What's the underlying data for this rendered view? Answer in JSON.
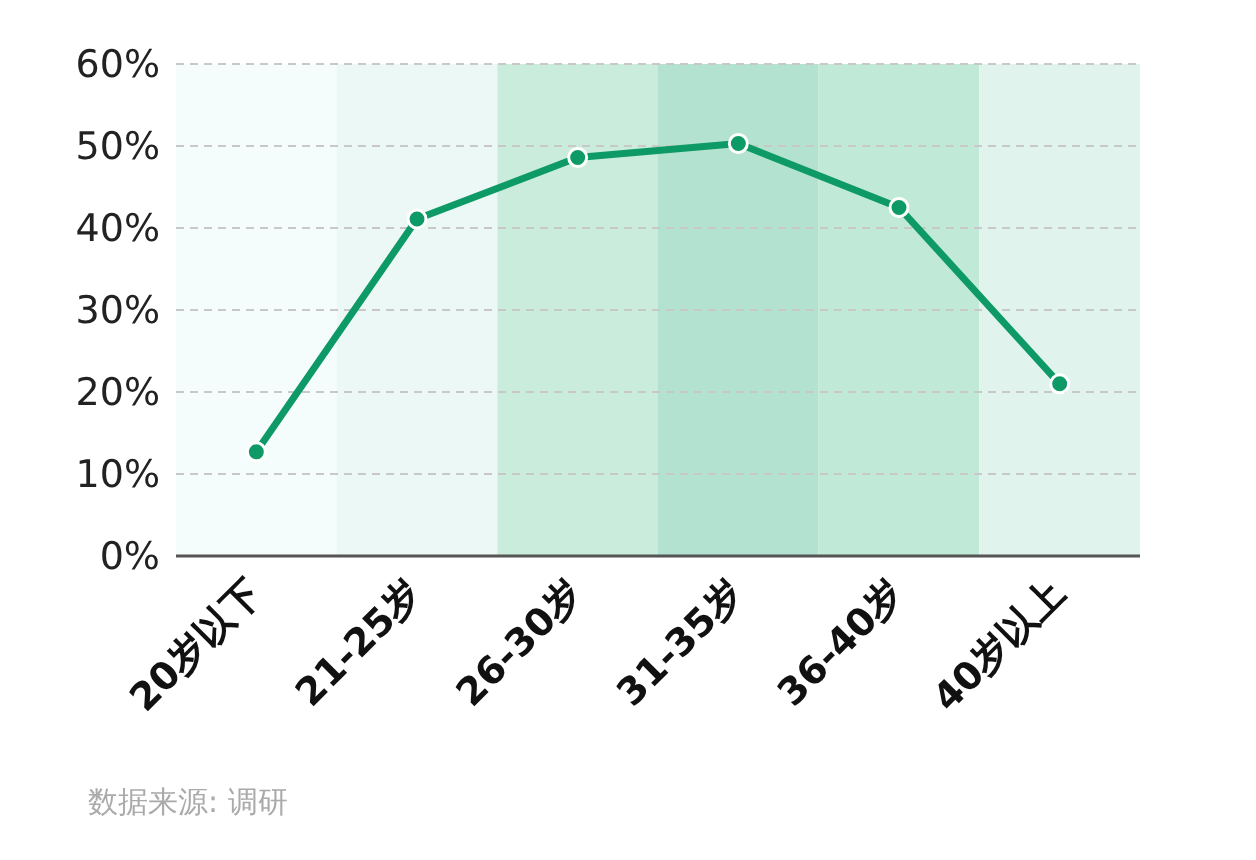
{
  "chart_data": {
    "type": "line",
    "categories": [
      "20岁以下",
      "21-25岁",
      "26-30岁",
      "31-35岁",
      "36-40岁",
      "40岁以上"
    ],
    "series": [
      {
        "color": "#0e9a67",
        "values": [
          12.7,
          41.1,
          48.6,
          50.3,
          42.5,
          21.0
        ]
      }
    ],
    "ylim": [
      0,
      60
    ],
    "yticks": [
      {
        "value": 0,
        "label": "0%"
      },
      {
        "value": 10,
        "label": "10%"
      },
      {
        "value": 20,
        "label": "20%"
      },
      {
        "value": 30,
        "label": "30%"
      },
      {
        "value": 40,
        "label": "40%"
      },
      {
        "value": 50,
        "label": "50%"
      },
      {
        "value": 60,
        "label": "60%"
      }
    ],
    "grid": "y",
    "marker": "circle",
    "line_style": "solid",
    "legend": false,
    "bands": [
      {
        "axis": "x",
        "from": "20岁以下",
        "to": "20岁以下",
        "color": "#f5fcfc"
      },
      {
        "axis": "x",
        "from": "21-25岁",
        "to": "21-25岁",
        "color": "#ecf8f5"
      },
      {
        "axis": "x",
        "from": "26-30岁",
        "to": "26-30岁",
        "color": "#c9ecdd"
      },
      {
        "axis": "x",
        "from": "31-35岁",
        "to": "31-35岁",
        "color": "#b3e3d0"
      },
      {
        "axis": "x",
        "from": "36-40岁",
        "to": "36-40岁",
        "color": "#c1e9d8"
      },
      {
        "axis": "x",
        "from": "40岁以上",
        "to": "40岁以上",
        "color": "#e0f3ec"
      }
    ],
    "annotations": [
      "数据来源: 调研"
    ]
  }
}
